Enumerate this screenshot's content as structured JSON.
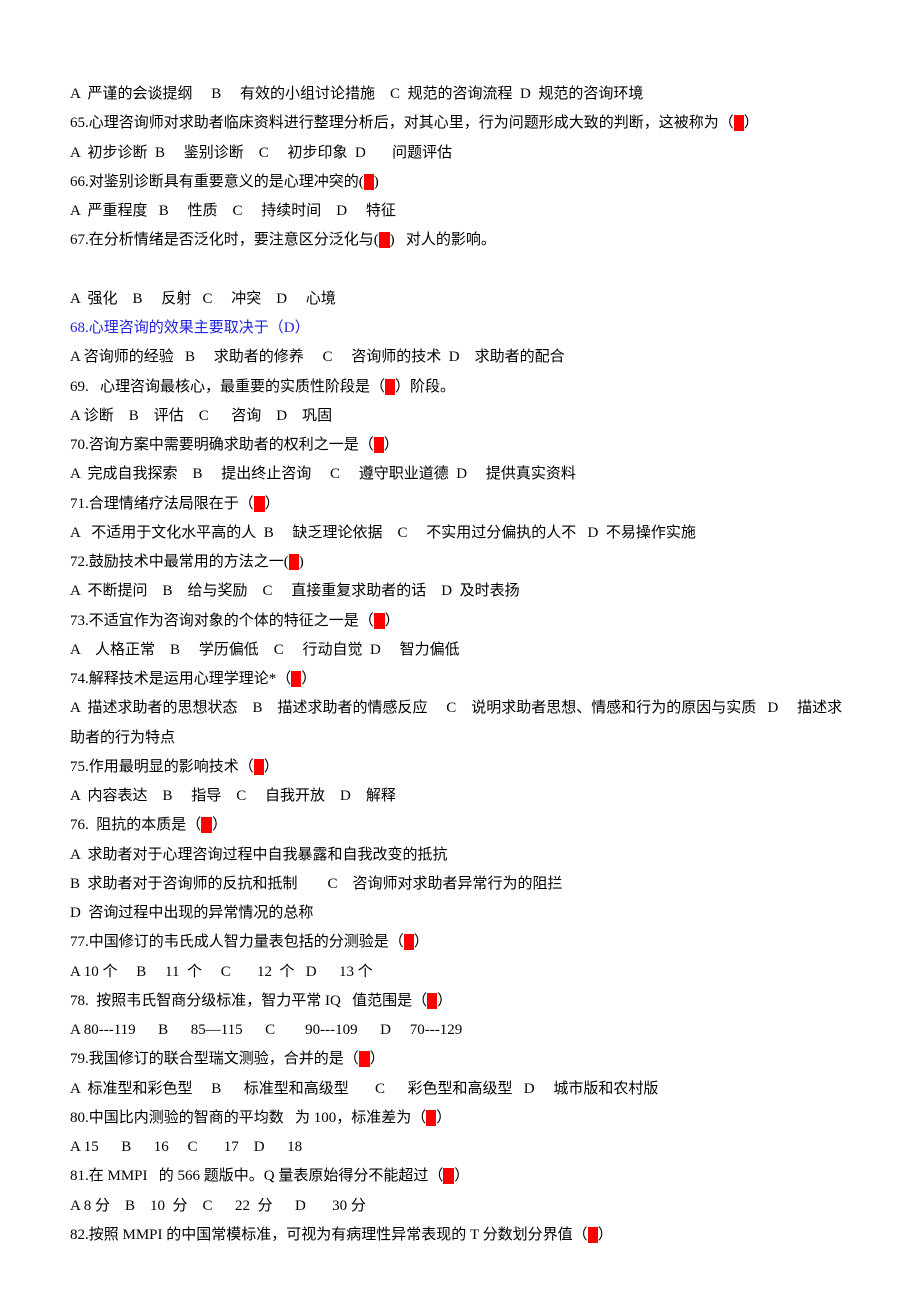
{
  "font": {
    "family": "SimSun",
    "size_pt": 11,
    "line_height": 1.95
  },
  "colors": {
    "text": "#000000",
    "highlight_bg": "#ff0000",
    "highlight_fg": "#ff0000",
    "blue": "#2222dd",
    "background": "#ffffff"
  },
  "lines": [
    {
      "segs": [
        {
          "t": "A  严谨的会谈提纲     B     有效的小组讨论措施    C  规范的咨询流程  D  规范的咨询环境"
        }
      ]
    },
    {
      "segs": [
        {
          "t": "65.心理咨询师对求助者临床资料进行整理分析后，对其心里，行为问题形成大致的判断，这被称为（"
        },
        {
          "t": "C",
          "cls": "hl"
        },
        {
          "t": "）"
        }
      ]
    },
    {
      "segs": [
        {
          "t": "A  初步诊断  B     鉴别诊断    C     初步印象  D       问题评估"
        }
      ]
    },
    {
      "segs": [
        {
          "t": "66.对鉴别诊断具有重要意义的是心理冲突的("
        },
        {
          "t": "B",
          "cls": "hl"
        },
        {
          "t": ")"
        }
      ]
    },
    {
      "segs": [
        {
          "t": "A  严重程度   B     性质    C     持续时间    D     特征"
        }
      ]
    },
    {
      "segs": [
        {
          "t": "67.在分析情绪是否泛化时，要注意区分泛化与("
        },
        {
          "t": "D",
          "cls": "hl"
        },
        {
          "t": ")   对人的影响。"
        }
      ]
    },
    {
      "segs": [
        {
          "t": " "
        }
      ]
    },
    {
      "segs": [
        {
          "t": "A  强化    B     反射   C     冲突    D     心境"
        }
      ]
    },
    {
      "segs": [
        {
          "t": "68.心理咨询的效果主要取决于（D）",
          "cls": "blue"
        }
      ]
    },
    {
      "segs": [
        {
          "t": "A 咨询师的经验   B     求助者的修养     C     咨询师的技术  D    求助者的配合"
        }
      ]
    },
    {
      "segs": [
        {
          "t": "69.   心理咨询最核心，最重要的实质性阶段是（"
        },
        {
          "t": "C",
          "cls": "hl"
        },
        {
          "t": "）阶段。"
        }
      ]
    },
    {
      "segs": [
        {
          "t": "A 诊断    B    评估    C      咨询    D    巩固"
        }
      ]
    },
    {
      "segs": [
        {
          "t": "70.咨询方案中需要明确求助者的权利之一是（"
        },
        {
          "t": "B",
          "cls": "hl"
        },
        {
          "t": "）"
        }
      ]
    },
    {
      "segs": [
        {
          "t": "A  完成自我探索    B     提出终止咨询     C     遵守职业道德  D     提供真实资料"
        }
      ]
    },
    {
      "segs": [
        {
          "t": "71.合理情绪疗法局限在于（"
        },
        {
          "t": "A",
          "cls": "hl"
        },
        {
          "t": "）"
        }
      ]
    },
    {
      "segs": [
        {
          "t": "A   不适用于文化水平高的人  B     缺乏理论依据    C     不实用过分偏执的人不   D  不易操作实施"
        }
      ]
    },
    {
      "segs": [
        {
          "t": "72.鼓励技术中最常用的方法之一("
        },
        {
          "t": "C",
          "cls": "hl"
        },
        {
          "t": ")"
        }
      ]
    },
    {
      "segs": [
        {
          "t": "A  不断提问    B    给与奖励    C     直接重复求助者的话    D  及时表扬"
        }
      ]
    },
    {
      "segs": [
        {
          "t": "73.不适宜作为咨询对象的个体的特征之一是（"
        },
        {
          "t": "D",
          "cls": "hl"
        },
        {
          "t": "）"
        }
      ]
    },
    {
      "segs": [
        {
          "t": "A    人格正常    B     学历偏低    C     行动自觉  D     智力偏低"
        }
      ]
    },
    {
      "segs": [
        {
          "t": "74.解释技术是运用心理学理论*（"
        },
        {
          "t": "C",
          "cls": "hl"
        },
        {
          "t": "）"
        }
      ]
    },
    {
      "segs": [
        {
          "t": "A  描述求助者的思想状态    B    描述求助者的情感反应     C    说明求助者思想、情感和行为的原因与实质   D     描述求助者的行为特点"
        }
      ]
    },
    {
      "segs": [
        {
          "t": "75.作用最明显的影响技术（"
        },
        {
          "t": "B",
          "cls": "hl"
        },
        {
          "t": "）"
        }
      ]
    },
    {
      "segs": [
        {
          "t": "A  内容表达    B     指导    C     自我开放    D    解释"
        }
      ]
    },
    {
      "segs": [
        {
          "t": "76.  阻抗的本质是（"
        },
        {
          "t": "A",
          "cls": "hl"
        },
        {
          "t": "）"
        }
      ]
    },
    {
      "segs": [
        {
          "t": "A  求助者对于心理咨询过程中自我暴露和自我改变的抵抗"
        }
      ]
    },
    {
      "segs": [
        {
          "t": "B  求助者对于咨询师的反抗和抵制        C    咨询师对求助者异常行为的阻拦"
        }
      ]
    },
    {
      "segs": [
        {
          "t": "D  咨询过程中出现的异常情况的总称"
        }
      ]
    },
    {
      "segs": [
        {
          "t": "77.中国修订的韦氏成人智力量表包括的分测验是（"
        },
        {
          "t": "B",
          "cls": "hl"
        },
        {
          "t": "）"
        }
      ]
    },
    {
      "segs": [
        {
          "t": "A 10 个     B     11  个     C       12  个   D      13 个"
        }
      ]
    },
    {
      "segs": [
        {
          "t": "78.  按照韦氏智商分级标准，智力平常 IQ   值范围是（"
        },
        {
          "t": "C",
          "cls": "hl"
        },
        {
          "t": "）"
        }
      ]
    },
    {
      "segs": [
        {
          "t": "A 80---119      B      85—115      C        90---109      D     70---129"
        }
      ]
    },
    {
      "segs": [
        {
          "t": "79.我国修订的联合型瑞文测验，合并的是（"
        },
        {
          "t": "A",
          "cls": "hl"
        },
        {
          "t": "）"
        }
      ]
    },
    {
      "segs": [
        {
          "t": "A  标准型和彩色型     B      标准型和高级型       C      彩色型和高级型   D     城市版和农村版"
        }
      ]
    },
    {
      "segs": [
        {
          "t": "80.中国比内测验的智商的平均数   为 100，标准差为（"
        },
        {
          "t": "B",
          "cls": "hl"
        },
        {
          "t": "）"
        }
      ]
    },
    {
      "segs": [
        {
          "t": "A 15      B      16     C       17    D      18"
        }
      ]
    },
    {
      "segs": [
        {
          "t": "81.在 MMPI   的 566 题版中。Q 量表原始得分不能超过（"
        },
        {
          "t": "D",
          "cls": "hl"
        },
        {
          "t": "）"
        }
      ]
    },
    {
      "segs": [
        {
          "t": "A 8 分    B    10  分    C      22  分      D       30 分"
        }
      ]
    },
    {
      "segs": [
        {
          "t": "82.按照 MMPI 的中国常模标准，可视为有病理性异常表现的 T 分数划分界值（"
        },
        {
          "t": "B",
          "cls": "hl"
        },
        {
          "t": "）"
        }
      ]
    }
  ]
}
